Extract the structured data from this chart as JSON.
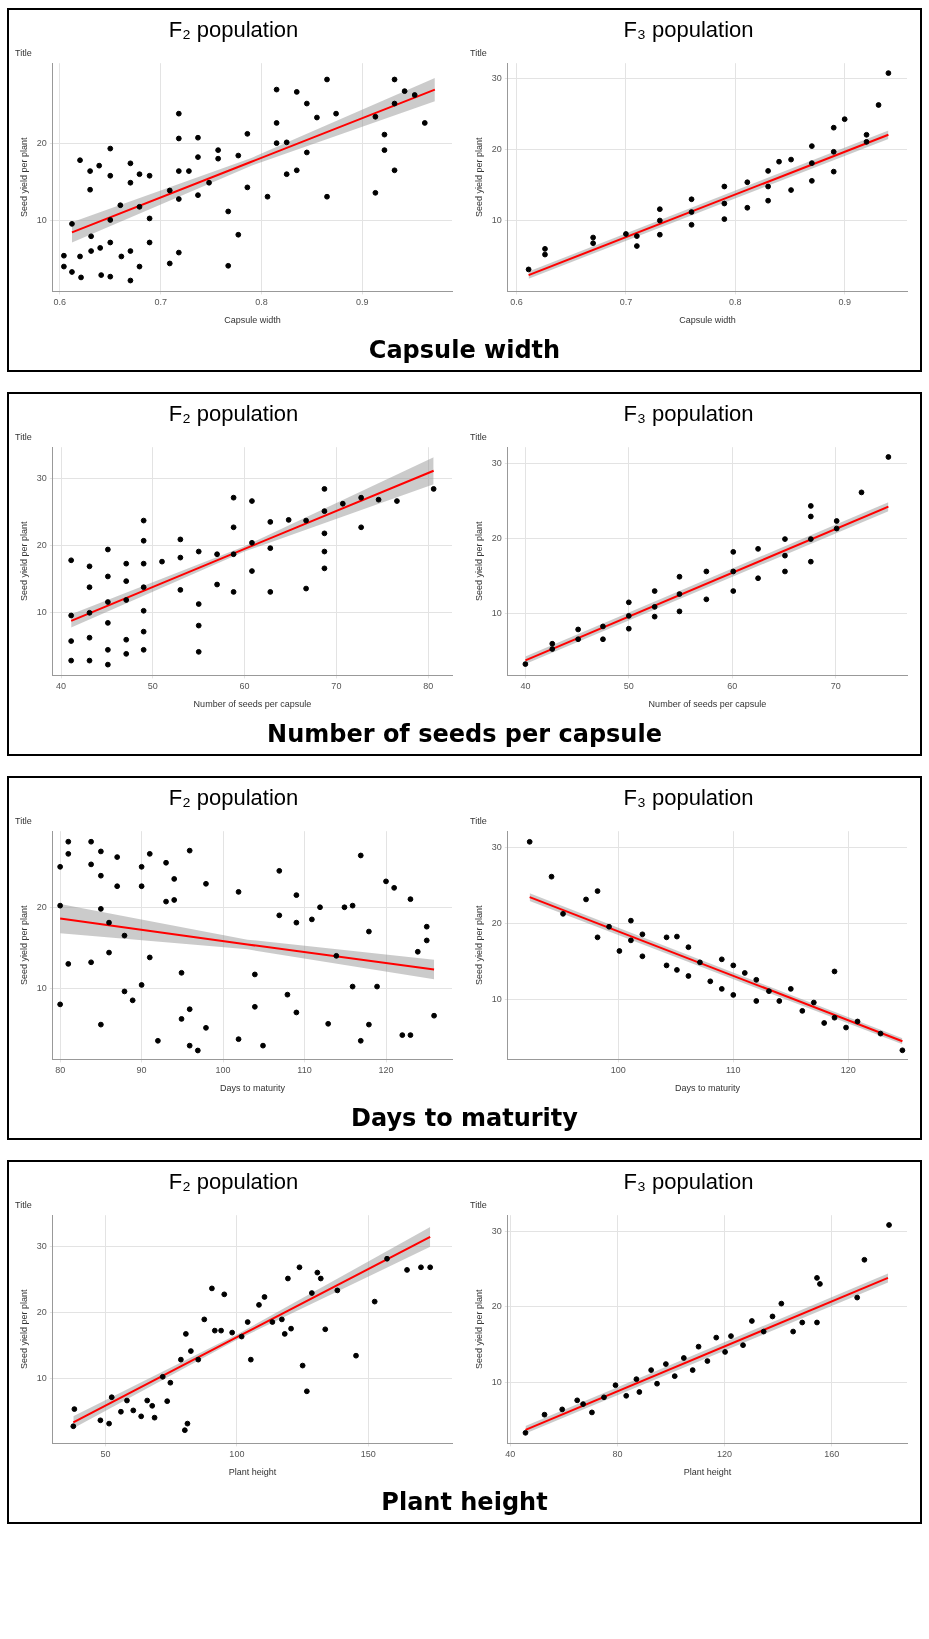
{
  "chart_data": [
    {
      "type": "scatter",
      "title": "F₂ population",
      "subtitle": "Title",
      "xlabel": "Capsule width",
      "ylabel": "Seed yield per plant",
      "annotations": [
        "Capsule width"
      ],
      "xlim": [
        0.593,
        0.989
      ],
      "ylim": [
        0.9,
        30.3
      ],
      "xticks": [
        0.6,
        0.7,
        0.8,
        0.9
      ],
      "yticks": [
        10,
        20
      ],
      "grid": true,
      "marker": "circle",
      "series": [
        {
          "type": "scatter",
          "color": "#000000",
          "x": [
            0.604,
            0.604,
            0.612,
            0.612,
            0.62,
            0.62,
            0.621,
            0.63,
            0.63,
            0.631,
            0.631,
            0.639,
            0.64,
            0.641,
            0.65,
            0.65,
            0.65,
            0.65,
            0.65,
            0.66,
            0.661,
            0.67,
            0.67,
            0.67,
            0.67,
            0.679,
            0.679,
            0.679,
            0.689,
            0.689,
            0.689,
            0.709,
            0.709,
            0.718,
            0.718,
            0.718,
            0.718,
            0.718,
            0.728,
            0.737,
            0.737,
            0.737,
            0.748,
            0.757,
            0.757,
            0.767,
            0.767,
            0.777,
            0.777,
            0.786,
            0.786,
            0.806,
            0.815,
            0.815,
            0.815,
            0.825,
            0.825,
            0.835,
            0.835,
            0.845,
            0.845,
            0.855,
            0.865,
            0.865,
            0.874,
            0.913,
            0.913,
            0.922,
            0.922,
            0.932,
            0.932,
            0.932,
            0.942,
            0.952,
            0.962
          ],
          "values": [
            5.5,
            4.1,
            3.4,
            9.6,
            17.8,
            5.4,
            2.7,
            16.4,
            14.0,
            8.0,
            6.1,
            17.1,
            6.5,
            3.0,
            19.3,
            15.8,
            10.1,
            7.2,
            2.8,
            12.0,
            5.4,
            17.4,
            14.9,
            6.1,
            2.3,
            16.0,
            11.8,
            4.1,
            15.8,
            10.3,
            7.2,
            13.9,
            4.5,
            23.8,
            20.6,
            16.4,
            12.8,
            5.9,
            16.4,
            20.7,
            18.2,
            13.3,
            14.9,
            19.1,
            18.0,
            11.2,
            4.2,
            18.4,
            8.2,
            21.2,
            14.3,
            13.1,
            26.9,
            22.6,
            20.0,
            20.1,
            16.0,
            26.6,
            16.5,
            25.1,
            18.8,
            23.3,
            28.2,
            13.1,
            23.8,
            13.6,
            23.4,
            21.1,
            19.1,
            28.2,
            25.1,
            16.5,
            26.7,
            26.2,
            22.6
          ]
        },
        {
          "type": "line",
          "marker": "none",
          "color": "#ff0000",
          "x": [
            0.612,
            0.79,
            0.972
          ],
          "values": [
            8.5,
            17.6,
            26.9
          ],
          "lower": [
            7.2,
            17.1,
            25.4
          ],
          "upper": [
            9.8,
            18.1,
            28.4
          ]
        }
      ]
    },
    {
      "type": "scatter",
      "title": "F₃ population",
      "subtitle": "Title",
      "xlabel": "Capsule width",
      "ylabel": "Seed yield per plant",
      "xlim": [
        0.592,
        0.957
      ],
      "ylim": [
        0,
        32.2
      ],
      "xticks": [
        0.6,
        0.7,
        0.8,
        0.9
      ],
      "yticks": [
        10,
        20,
        30
      ],
      "grid": true,
      "marker": "circle",
      "series": [
        {
          "type": "scatter",
          "color": "#000000",
          "x": [
            0.611,
            0.626,
            0.626,
            0.67,
            0.67,
            0.7,
            0.71,
            0.71,
            0.731,
            0.731,
            0.731,
            0.76,
            0.76,
            0.76,
            0.79,
            0.79,
            0.79,
            0.811,
            0.811,
            0.83,
            0.83,
            0.83,
            0.84,
            0.851,
            0.851,
            0.87,
            0.87,
            0.87,
            0.89,
            0.89,
            0.89,
            0.9,
            0.92,
            0.92,
            0.931,
            0.94
          ],
          "values": [
            3.1,
            6.0,
            5.2,
            7.6,
            6.8,
            8.1,
            7.8,
            6.4,
            11.6,
            8.0,
            10.0,
            13.0,
            9.4,
            11.2,
            14.8,
            10.2,
            12.4,
            15.4,
            11.8,
            17.0,
            12.8,
            14.8,
            18.3,
            18.6,
            14.3,
            20.5,
            15.6,
            18.1,
            23.1,
            19.7,
            16.9,
            24.3,
            22.1,
            21.1,
            26.3,
            30.8
          ]
        },
        {
          "type": "line",
          "marker": "none",
          "color": "#ff0000",
          "x": [
            0.611,
            0.94
          ],
          "values": [
            2.3,
            22.1
          ],
          "lower": [
            1.8,
            21.5
          ],
          "upper": [
            2.8,
            22.7
          ]
        }
      ]
    },
    {
      "type": "scatter",
      "title": "F₂ population",
      "subtitle": "Title",
      "xlabel": "Number of seeds per capsule",
      "ylabel": "Seed yield per plant",
      "annotations": [
        "Number of seeds per capsule"
      ],
      "xlim": [
        39.1,
        82.6
      ],
      "ylim": [
        0.7,
        34.6
      ],
      "xticks": [
        40,
        50,
        60,
        70,
        80
      ],
      "yticks": [
        10,
        20,
        30
      ],
      "grid": true,
      "marker": "circle",
      "series": [
        {
          "type": "scatter",
          "color": "#000000",
          "x": [
            41.1,
            41.1,
            41.1,
            41.1,
            43.1,
            43.1,
            43.1,
            43.1,
            43.1,
            45.1,
            45.1,
            45.1,
            45.1,
            45.1,
            45.1,
            47.1,
            47.1,
            47.1,
            47.1,
            47.1,
            49.0,
            49.0,
            49.0,
            49.0,
            49.0,
            49.0,
            49.0,
            51.0,
            53.0,
            53.0,
            53.0,
            55.0,
            55.0,
            55.0,
            55.0,
            57.0,
            57.0,
            58.8,
            58.8,
            58.8,
            58.8,
            60.8,
            60.8,
            60.8,
            62.8,
            62.8,
            62.8,
            64.8,
            66.7,
            66.7,
            68.7,
            68.7,
            68.7,
            68.7,
            68.7,
            70.7,
            72.7,
            72.7,
            74.6,
            76.6,
            80.6
          ],
          "values": [
            17.8,
            9.6,
            5.8,
            2.9,
            16.9,
            13.8,
            10.0,
            6.3,
            2.9,
            19.4,
            15.4,
            11.6,
            8.5,
            4.5,
            2.3,
            17.3,
            14.7,
            11.9,
            6.0,
            3.9,
            23.7,
            20.7,
            17.3,
            13.8,
            10.3,
            7.2,
            4.5,
            17.6,
            20.9,
            18.2,
            13.4,
            19.1,
            11.3,
            8.1,
            4.2,
            18.7,
            14.2,
            27.1,
            22.7,
            18.7,
            13.1,
            26.6,
            20.4,
            16.2,
            23.5,
            19.6,
            13.1,
            23.8,
            23.7,
            13.6,
            28.4,
            25.1,
            21.8,
            19.1,
            16.6,
            26.2,
            27.1,
            22.7,
            26.8,
            26.6,
            28.4
          ]
        },
        {
          "type": "line",
          "marker": "none",
          "color": "#ff0000",
          "x": [
            41.1,
            60,
            80.6
          ],
          "values": [
            8.8,
            19.5,
            31.1
          ],
          "lower": [
            7.8,
            19.1,
            29.1
          ],
          "upper": [
            9.8,
            19.9,
            33.1
          ]
        }
      ]
    },
    {
      "type": "scatter",
      "title": "F₃ population",
      "subtitle": "Title",
      "xlabel": "Number of seeds per capsule",
      "ylabel": "Seed yield per plant",
      "xlim": [
        38.3,
        76.9
      ],
      "ylim": [
        1.8,
        32.1
      ],
      "xticks": [
        40,
        50,
        60,
        70
      ],
      "yticks": [
        10,
        20,
        30
      ],
      "grid": true,
      "marker": "circle",
      "series": [
        {
          "type": "scatter",
          "color": "#000000",
          "x": [
            40,
            42.6,
            42.6,
            45.1,
            45.1,
            47.5,
            47.5,
            50,
            50,
            50,
            52.5,
            52.5,
            52.5,
            54.9,
            54.9,
            54.9,
            57.5,
            57.5,
            60.1,
            60.1,
            60.1,
            62.5,
            62.5,
            65.1,
            65.1,
            65.1,
            67.6,
            67.6,
            67.6,
            67.6,
            70.1,
            70.1,
            72.5,
            75.1
          ],
          "values": [
            3.3,
            6.0,
            5.3,
            7.9,
            6.6,
            8.3,
            6.6,
            11.5,
            9.7,
            8.0,
            13.0,
            10.9,
            9.6,
            14.9,
            12.6,
            10.3,
            15.6,
            11.9,
            18.2,
            15.6,
            13.0,
            18.6,
            14.7,
            19.9,
            17.7,
            15.6,
            24.3,
            22.9,
            19.9,
            16.9,
            22.3,
            21.3,
            26.1,
            30.8
          ]
        },
        {
          "type": "line",
          "marker": "none",
          "color": "#ff0000",
          "x": [
            40,
            75.1
          ],
          "values": [
            3.8,
            24.2
          ],
          "lower": [
            3.3,
            23.6
          ],
          "upper": [
            4.3,
            24.8
          ]
        }
      ]
    },
    {
      "type": "scatter",
      "title": "F₂ population",
      "subtitle": "Title",
      "xlabel": "Days to maturity",
      "ylabel": "Seed yield per plant",
      "annotations": [
        "Days to maturity"
      ],
      "xlim": [
        79.1,
        128.1
      ],
      "ylim": [
        1.2,
        29.4
      ],
      "xticks": [
        80,
        90,
        100,
        110,
        120
      ],
      "yticks": [
        10,
        20
      ],
      "grid": true,
      "marker": "circle",
      "series": [
        {
          "type": "scatter",
          "color": "#000000",
          "x": [
            80,
            80,
            80,
            81,
            81,
            81,
            83.8,
            83.8,
            83.8,
            85,
            85,
            85,
            85,
            86,
            86,
            87,
            87,
            87.9,
            87.9,
            88.9,
            90,
            90,
            90,
            91,
            91,
            92,
            93,
            93,
            94,
            94,
            94.9,
            94.9,
            95.9,
            95.9,
            95.9,
            96.9,
            97.9,
            97.9,
            101.9,
            101.9,
            103.9,
            103.9,
            104.9,
            106.9,
            106.9,
            107.9,
            109,
            109,
            109,
            110.9,
            111.9,
            112.9,
            113.9,
            114.9,
            115.9,
            115.9,
            116.9,
            116.9,
            117.9,
            117.9,
            118.9,
            120,
            121,
            122,
            123,
            123,
            123.9,
            125,
            125,
            125.9
          ],
          "values": [
            25.0,
            20.2,
            8.0,
            28.1,
            26.6,
            13.0,
            28.1,
            25.3,
            13.2,
            26.9,
            23.9,
            19.8,
            5.5,
            18.1,
            14.4,
            26.2,
            22.6,
            16.5,
            9.6,
            8.5,
            25.0,
            22.6,
            10.4,
            26.6,
            13.8,
            3.5,
            25.5,
            20.7,
            23.5,
            20.9,
            11.9,
            6.2,
            27.0,
            7.4,
            2.9,
            2.3,
            22.9,
            5.1,
            21.9,
            3.7,
            11.7,
            7.7,
            2.9,
            24.5,
            19.0,
            9.2,
            21.5,
            18.1,
            7.0,
            18.5,
            20.0,
            5.6,
            14.0,
            20.0,
            20.2,
            10.2,
            26.4,
            3.5,
            17.0,
            5.5,
            10.2,
            23.2,
            22.4,
            4.2,
            21.0,
            4.2,
            14.5,
            17.6,
            15.9,
            6.6
          ]
        },
        {
          "type": "line",
          "marker": "none",
          "color": "#ff0000",
          "x": [
            80,
            103,
            125.9
          ],
          "values": [
            18.6,
            15.4,
            12.3
          ],
          "lower": [
            16.8,
            14.8,
            11.1
          ],
          "upper": [
            20.4,
            16.0,
            13.5
          ]
        }
      ]
    },
    {
      "type": "scatter",
      "title": "F₃ population",
      "subtitle": "Title",
      "xlabel": "Days to maturity",
      "ylabel": "Seed yield per plant",
      "xlim": [
        90.4,
        125.1
      ],
      "ylim": [
        2.1,
        32.2
      ],
      "xticks": [
        100,
        110,
        120
      ],
      "yticks": [
        10,
        20,
        30
      ],
      "grid": true,
      "marker": "circle",
      "series": [
        {
          "type": "scatter",
          "color": "#000000",
          "x": [
            92.3,
            94.2,
            95.2,
            97.2,
            98.2,
            98.2,
            99.2,
            100.1,
            101.1,
            101.1,
            102.1,
            102.1,
            104.2,
            104.2,
            105.1,
            105.1,
            106.1,
            106.1,
            107.1,
            108,
            109,
            109,
            110,
            110,
            111,
            112,
            112,
            113.1,
            114,
            115,
            116,
            117,
            117.9,
            118.8,
            118.8,
            119.8,
            120.8,
            122.8,
            124.7
          ],
          "values": [
            30.8,
            26.2,
            21.3,
            23.2,
            24.3,
            18.2,
            19.6,
            16.4,
            20.4,
            17.8,
            18.6,
            15.7,
            18.2,
            14.5,
            18.3,
            13.9,
            16.9,
            13.1,
            14.9,
            12.4,
            15.3,
            11.4,
            14.5,
            10.6,
            13.5,
            12.6,
            9.8,
            11.1,
            9.8,
            11.4,
            8.5,
            9.6,
            6.9,
            13.7,
            7.6,
            6.3,
            7.1,
            5.5,
            3.3
          ]
        },
        {
          "type": "line",
          "marker": "none",
          "color": "#ff0000",
          "x": [
            92.3,
            124.7
          ],
          "values": [
            23.5,
            4.5
          ],
          "lower": [
            23.0,
            4.1
          ],
          "upper": [
            24.0,
            4.9
          ]
        }
      ]
    },
    {
      "type": "scatter",
      "title": "F₂ population",
      "subtitle": "Title",
      "xlabel": "Plant height",
      "ylabel": "Seed yield per plant",
      "annotations": [
        "Plant height"
      ],
      "xlim": [
        30,
        181.8
      ],
      "ylim": [
        0.2,
        34.8
      ],
      "xticks": [
        50,
        100,
        150
      ],
      "yticks": [
        10,
        20,
        30
      ],
      "grid": true,
      "marker": "circle",
      "series": [
        {
          "type": "scatter",
          "color": "#000000",
          "x": [
            37.8,
            38.2,
            48.1,
            51.4,
            52.4,
            55.9,
            58.2,
            60.6,
            63.6,
            65.9,
            67.8,
            68.7,
            71.8,
            73.5,
            74.7,
            78.7,
            80.2,
            81.2,
            80.6,
            82.5,
            85.3,
            87.6,
            90.5,
            91.6,
            94.0,
            95.2,
            98.2,
            101.8,
            104.1,
            105.3,
            108.4,
            110.5,
            113.5,
            117.1,
            118.2,
            120.6,
            119.4,
            123.8,
            125,
            126.6,
            128.5,
            130.6,
            131.9,
            133.6,
            138.2,
            145.3,
            152.4,
            157.1,
            164.7,
            170.0,
            173.5
          ],
          "values": [
            2.8,
            5.4,
            3.7,
            3.2,
            7.2,
            5.0,
            6.7,
            5.2,
            4.3,
            6.7,
            5.9,
            4.1,
            10.3,
            6.6,
            9.4,
            12.9,
            2.2,
            3.2,
            16.8,
            14.2,
            12.9,
            19.0,
            23.7,
            17.3,
            17.3,
            22.8,
            17.0,
            16.4,
            18.6,
            12.9,
            21.2,
            22.4,
            18.6,
            19.0,
            16.8,
            17.6,
            25.2,
            26.9,
            12.0,
            8.1,
            23.0,
            26.1,
            25.2,
            17.5,
            23.4,
            13.5,
            21.7,
            28.2,
            26.5,
            26.9,
            26.9
          ]
        },
        {
          "type": "line",
          "marker": "none",
          "color": "#ff0000",
          "x": [
            37.8,
            100,
            173.5
          ],
          "values": [
            3.4,
            16.3,
            31.5
          ],
          "lower": [
            2.5,
            15.9,
            30.0
          ],
          "upper": [
            4.3,
            16.7,
            33.0
          ]
        }
      ]
    },
    {
      "type": "scatter",
      "title": "F₃ population",
      "subtitle": "Title",
      "xlabel": "Plant height",
      "ylabel": "Seed yield per plant",
      "xlim": [
        39.1,
        188.1
      ],
      "ylim": [
        1.9,
        32.1
      ],
      "xticks": [
        40,
        80,
        120,
        160
      ],
      "yticks": [
        10,
        20,
        30
      ],
      "grid": true,
      "marker": "circle",
      "series": [
        {
          "type": "scatter",
          "color": "#000000",
          "x": [
            45.7,
            52.8,
            59.4,
            65,
            67.2,
            70.5,
            75,
            79.3,
            83.3,
            87.1,
            88.2,
            92.6,
            94.8,
            98.1,
            101.4,
            104.8,
            108.1,
            110.3,
            113.6,
            116.9,
            120.2,
            122.4,
            126.9,
            130.2,
            134.6,
            137.9,
            141.2,
            145.6,
            149,
            154.5,
            155.6,
            154.5,
            169.5,
            172.2,
            181.4
          ],
          "values": [
            3.3,
            5.7,
            6.4,
            7.6,
            7.1,
            6.0,
            8.0,
            9.6,
            8.2,
            10.4,
            8.7,
            11.6,
            9.8,
            12.4,
            10.8,
            13.2,
            11.6,
            14.7,
            12.8,
            15.9,
            14.0,
            16.1,
            14.9,
            18.1,
            16.7,
            18.7,
            20.4,
            16.7,
            17.9,
            23.8,
            23.0,
            17.9,
            21.2,
            26.2,
            30.8
          ]
        },
        {
          "type": "line",
          "marker": "none",
          "color": "#ff0000",
          "x": [
            45.7,
            181
          ],
          "values": [
            3.7,
            23.8
          ],
          "lower": [
            3.2,
            23.2
          ],
          "upper": [
            4.2,
            24.4
          ]
        }
      ]
    }
  ]
}
